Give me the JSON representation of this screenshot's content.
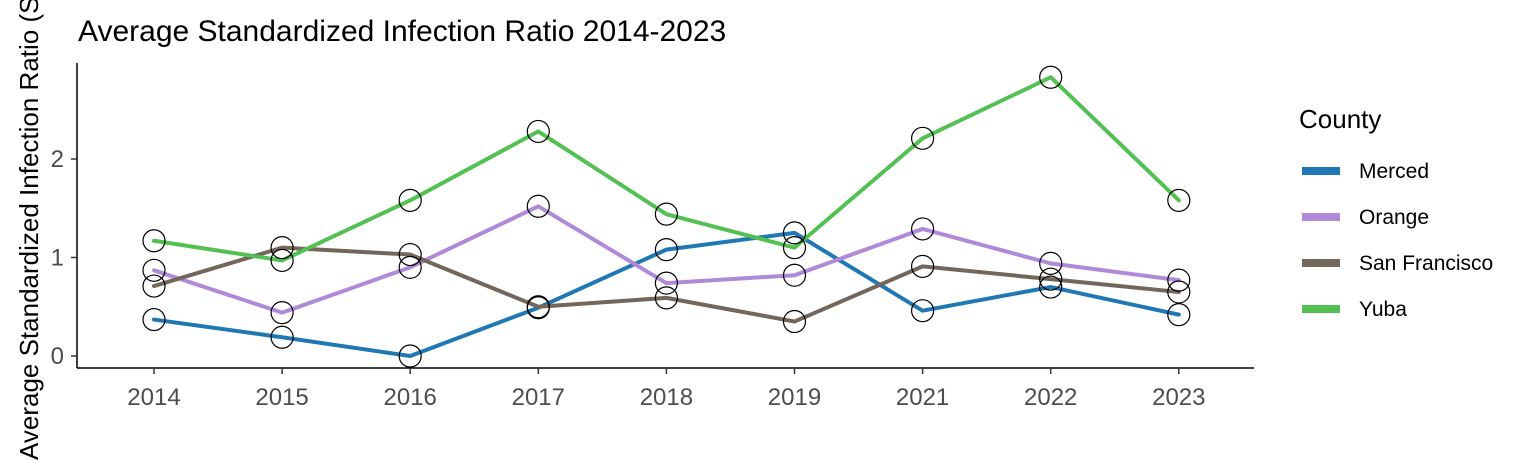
{
  "chart_data": {
    "type": "line",
    "title": "Average Standardized Infection Ratio 2014-2023",
    "xlabel": "",
    "ylabel": "Average Standardized Infection Ratio (SIR)",
    "categories": [
      "2014",
      "2015",
      "2016",
      "2017",
      "2018",
      "2019",
      "2021",
      "2022",
      "2023"
    ],
    "yticks": [
      0,
      1,
      2
    ],
    "ylim": [
      -0.1,
      2.98
    ],
    "grid": false,
    "legend": {
      "title": "County",
      "position": "right"
    },
    "series": [
      {
        "name": "Merced",
        "color": "#1f78b4",
        "values": [
          0.37,
          0.19,
          0.0,
          0.49,
          1.08,
          1.25,
          0.46,
          0.7,
          0.42
        ]
      },
      {
        "name": "Orange",
        "color": "#b08ad9",
        "values": [
          0.87,
          0.44,
          0.9,
          1.52,
          0.74,
          0.82,
          1.29,
          0.94,
          0.77
        ]
      },
      {
        "name": "San Francisco",
        "color": "#73675c",
        "values": [
          0.71,
          1.1,
          1.03,
          0.5,
          0.59,
          0.35,
          0.91,
          0.78,
          0.65
        ]
      },
      {
        "name": "Yuba",
        "color": "#52c052",
        "values": [
          1.17,
          0.97,
          1.58,
          2.28,
          1.44,
          1.1,
          2.21,
          2.83,
          1.58
        ]
      }
    ]
  }
}
